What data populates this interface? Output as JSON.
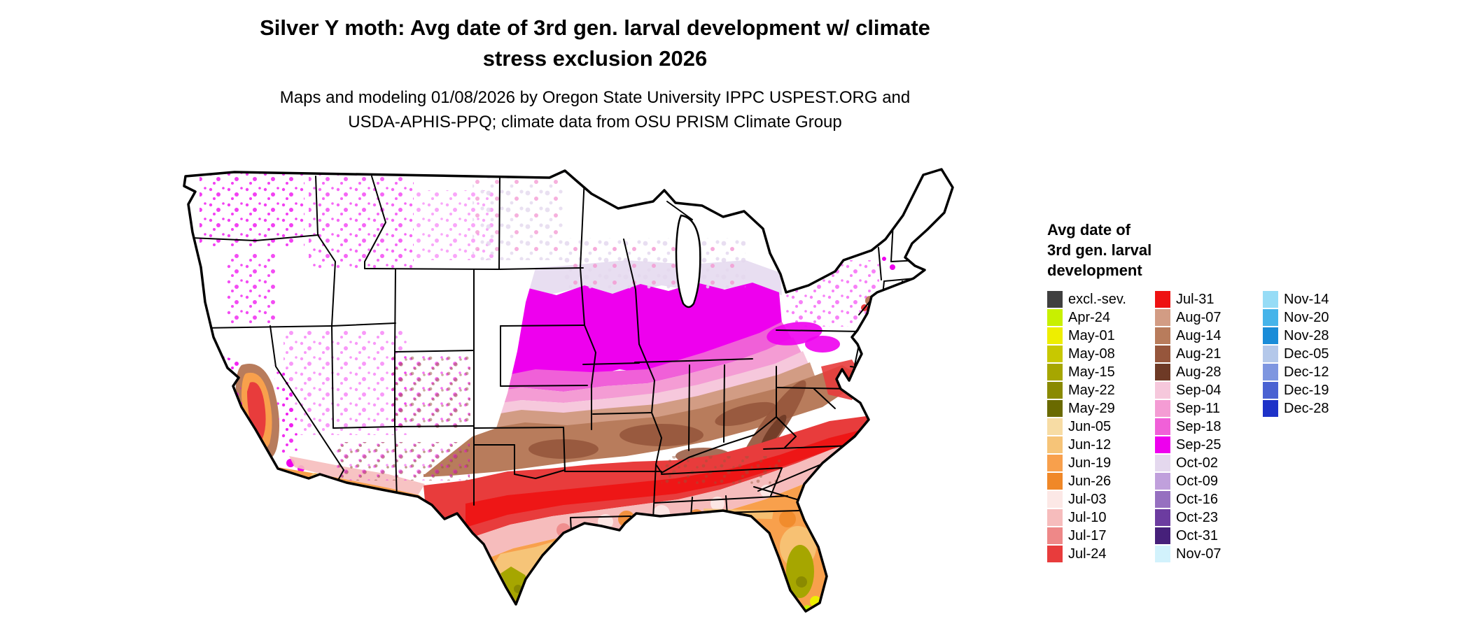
{
  "title": {
    "line1": "Silver Y moth: Avg date of 3rd gen. larval development w/ climate",
    "line2": "stress exclusion 2026"
  },
  "subtitle": {
    "line1": "Maps and modeling 01/08/2026 by Oregon State University IPPC USPEST.ORG and",
    "line2": "USDA-APHIS-PPQ; climate data from OSU PRISM Climate Group"
  },
  "legend": {
    "title_line1": "Avg date of",
    "title_line2": "3rd gen. larval",
    "title_line3": "development",
    "columns": [
      [
        {
          "label": "excl.-sev.",
          "color": "#3f3f3f"
        },
        {
          "label": "Apr-24",
          "color": "#c8f000"
        },
        {
          "label": "May-01",
          "color": "#eeee00"
        },
        {
          "label": "May-08",
          "color": "#c8c800"
        },
        {
          "label": "May-15",
          "color": "#a6a600"
        },
        {
          "label": "May-22",
          "color": "#8a8a00"
        },
        {
          "label": "May-29",
          "color": "#6a6a00"
        },
        {
          "label": "Jun-05",
          "color": "#f7dca4"
        },
        {
          "label": "Jun-12",
          "color": "#f6c478"
        },
        {
          "label": "Jun-19",
          "color": "#f8a04c"
        },
        {
          "label": "Jun-26",
          "color": "#f08828"
        },
        {
          "label": "Jul-03",
          "color": "#fce8e6"
        },
        {
          "label": "Jul-10",
          "color": "#f6bcbc"
        },
        {
          "label": "Jul-17",
          "color": "#ee8888"
        },
        {
          "label": "Jul-24",
          "color": "#e83c3c"
        }
      ],
      [
        {
          "label": "Jul-31",
          "color": "#ee1212"
        },
        {
          "label": "Aug-07",
          "color": "#d29c84"
        },
        {
          "label": "Aug-14",
          "color": "#b87c5c"
        },
        {
          "label": "Aug-21",
          "color": "#96563c"
        },
        {
          "label": "Aug-28",
          "color": "#6e3a26"
        },
        {
          "label": "Sep-04",
          "color": "#f6c8dc"
        },
        {
          "label": "Sep-11",
          "color": "#f49cd4"
        },
        {
          "label": "Sep-18",
          "color": "#f060d8"
        },
        {
          "label": "Sep-25",
          "color": "#ee00ee"
        },
        {
          "label": "Oct-02",
          "color": "#e4d8ee"
        },
        {
          "label": "Oct-09",
          "color": "#c0a0dc"
        },
        {
          "label": "Oct-16",
          "color": "#9670c0"
        },
        {
          "label": "Oct-23",
          "color": "#6c3ca0"
        },
        {
          "label": "Oct-31",
          "color": "#46207a"
        },
        {
          "label": "Nov-07",
          "color": "#d2f2fc"
        }
      ],
      [
        {
          "label": "Nov-14",
          "color": "#96dcf6"
        },
        {
          "label": "Nov-20",
          "color": "#46b4ea"
        },
        {
          "label": "Nov-28",
          "color": "#1a8cd8"
        },
        {
          "label": "Dec-05",
          "color": "#b4c8ea"
        },
        {
          "label": "Dec-12",
          "color": "#7e96e0"
        },
        {
          "label": "Dec-19",
          "color": "#4a62d2"
        },
        {
          "label": "Dec-28",
          "color": "#1e32c8"
        }
      ]
    ]
  },
  "map": {
    "outline_color": "#000000",
    "background": "#ffffff"
  }
}
